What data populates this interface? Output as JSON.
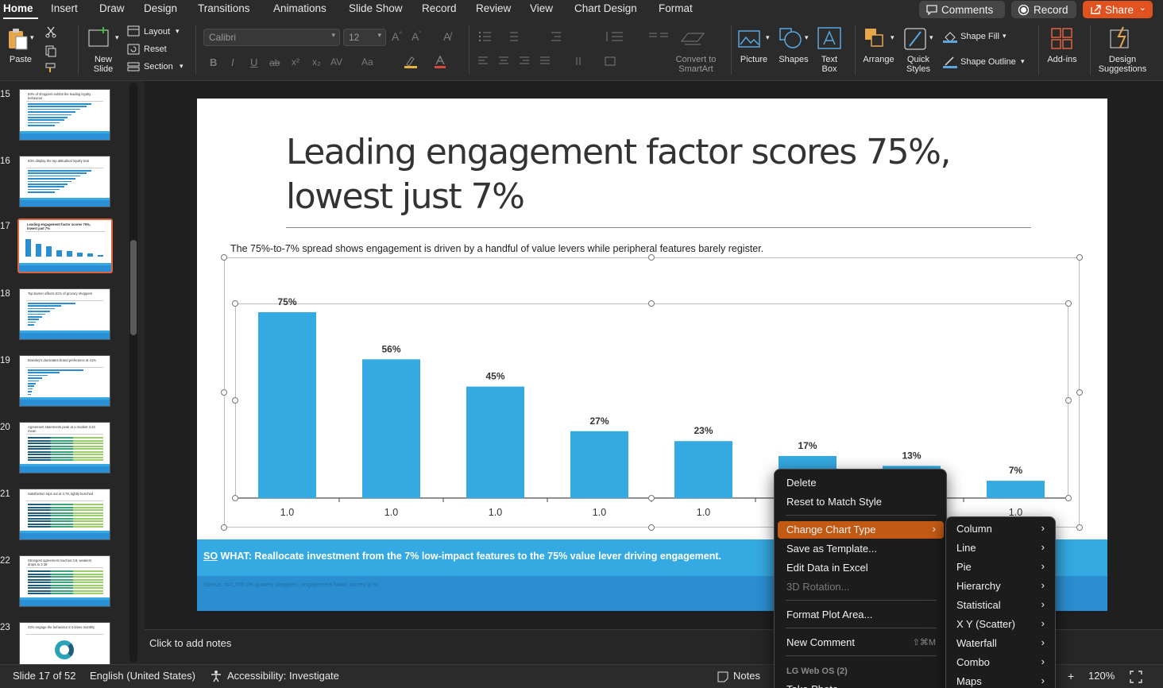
{
  "tabs": [
    "Home",
    "Insert",
    "Draw",
    "Design",
    "Transitions",
    "Animations",
    "Slide Show",
    "Record",
    "Review",
    "View",
    "Chart Design",
    "Format"
  ],
  "top_buttons": {
    "comments": "Comments",
    "record": "Record",
    "share": "Share"
  },
  "ribbon": {
    "paste": "Paste",
    "new_slide": "New\nSlide",
    "layout": "Layout",
    "reset": "Reset",
    "section": "Section",
    "font_name": "Calibri",
    "font_size": "12",
    "convert_smartart": "Convert to\nSmartArt",
    "picture": "Picture",
    "shapes": "Shapes",
    "text_box": "Text\nBox",
    "arrange": "Arrange",
    "quick_styles": "Quick\nStyles",
    "shape_fill": "Shape Fill",
    "shape_outline": "Shape Outline",
    "add_ins": "Add-ins",
    "design_suggestions": "Design\nSuggestions",
    "format_letters": [
      "B",
      "I",
      "U",
      "ab",
      "x²",
      "x₂",
      "AV",
      "Aa"
    ]
  },
  "thumbnails": [
    {
      "num": "15",
      "title": "93% of shoppers exhibit the leading loyalty behaviour",
      "kind": "hbar"
    },
    {
      "num": "16",
      "title": "83% display the top attitudinal loyalty trait",
      "kind": "hbar"
    },
    {
      "num": "17",
      "title": "Leading engagement factor scores 75%, lowest just 7%",
      "kind": "vbar"
    },
    {
      "num": "18",
      "title": "Top barrier affects 61% of grocery shoppers",
      "kind": "hbar2"
    },
    {
      "num": "19",
      "title": "Bramley's dominates brand preference at 41%",
      "kind": "hbar3"
    },
    {
      "num": "20",
      "title": "Agreement statements peak at a modest 3.23 mean",
      "kind": "stack"
    },
    {
      "num": "21",
      "title": "Satisfaction tops out at 3.78, tightly bunched",
      "kind": "stack"
    },
    {
      "num": "22",
      "title": "Strongest agreement reaches 3.8, weakest drops to 3.38",
      "kind": "stack"
    },
    {
      "num": "23",
      "title": "32% engage the behaviour 2-3 times monthly",
      "kind": "donut"
    }
  ],
  "slide": {
    "title": "Leading engagement factor scores 75%, lowest just 7%",
    "subtitle": "The 75%-to-7% spread shows engagement is driven by a handful of value levers while peripheral features barely register.",
    "so_what_prefix": "SO",
    "so_what": " WHAT: Reallocate investment from the 7% low-impact features to the 75% value lever driving engagement.",
    "source": "Source: n=1,000 UK grocery shoppers; engagement factor scores in %"
  },
  "chart_data": {
    "type": "bar",
    "categories": [
      "1.0",
      "1.0",
      "1.0",
      "1.0",
      "1.0",
      "1.0",
      "1.0",
      "1.0"
    ],
    "values": [
      75,
      56,
      45,
      27,
      23,
      17,
      13,
      7
    ],
    "data_labels": [
      "75%",
      "56%",
      "45%",
      "27%",
      "23%",
      "17%",
      "13%",
      "7%"
    ],
    "ylim": [
      0,
      80
    ],
    "color": "#35a9e1"
  },
  "notes_placeholder": "Click to add notes",
  "status": {
    "slide_info": "Slide 17 of 52",
    "language": "English (United States)",
    "accessibility": "Accessibility: Investigate",
    "notes": "Notes",
    "zoom": "120%"
  },
  "context_menu": {
    "items": [
      {
        "label": "Delete",
        "state": "normal"
      },
      {
        "label": "Reset to Match Style",
        "state": "normal"
      },
      {
        "label": "Change Chart Type",
        "state": "highlighted",
        "submenu": true
      },
      {
        "label": "Save as Template...",
        "state": "normal"
      },
      {
        "label": "Edit Data in Excel",
        "state": "normal"
      },
      {
        "label": "3D Rotation...",
        "state": "disabled"
      },
      {
        "label": "Format Plot Area...",
        "state": "normal"
      },
      {
        "label": "New Comment",
        "state": "normal",
        "shortcut": "⇧⌘M"
      }
    ],
    "section_header": "LG Web OS (2)",
    "partial_item": "Take Photo"
  },
  "submenu": [
    "Column",
    "Line",
    "Pie",
    "Hierarchy",
    "Statistical",
    "X Y (Scatter)",
    "Waterfall",
    "Combo",
    "Maps"
  ],
  "colors": {
    "accent_orange": "#e0521f",
    "menu_highlight": "#c35a14",
    "bar_blue": "#35a9e1",
    "band_blue": "#2b8ed0"
  }
}
